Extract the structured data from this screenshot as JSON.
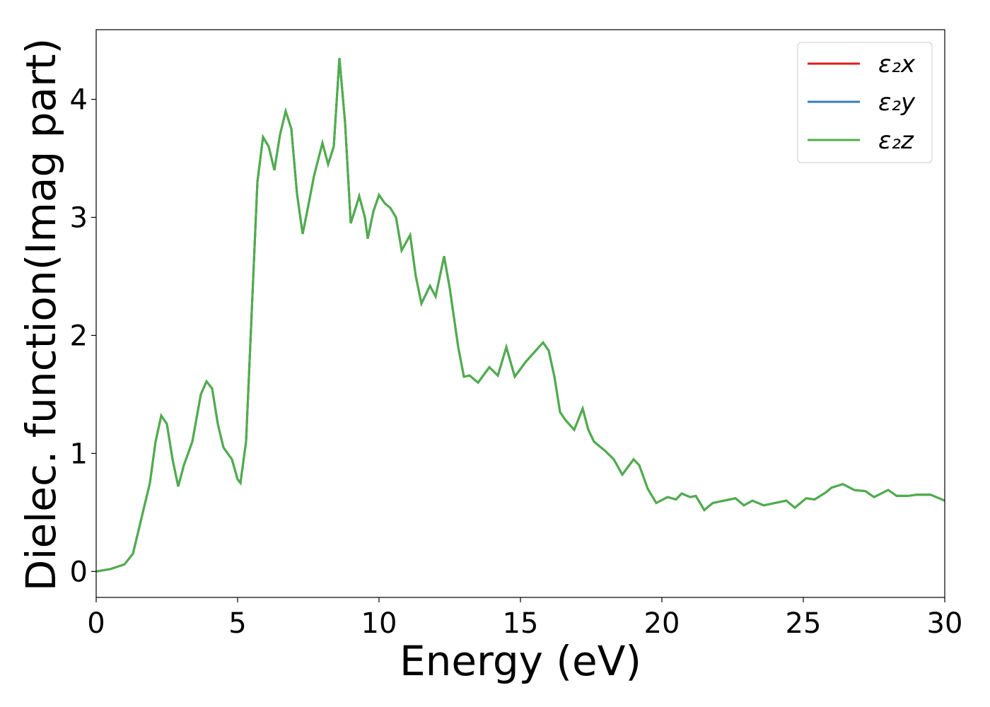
{
  "chart_data": {
    "type": "line",
    "xlabel": "Energy (eV)",
    "ylabel": "Dielec. function(Imag part)",
    "x": [
      0,
      0.5,
      1.0,
      1.3,
      1.6,
      1.9,
      2.1,
      2.3,
      2.5,
      2.7,
      2.9,
      3.1,
      3.4,
      3.7,
      3.9,
      4.1,
      4.3,
      4.5,
      4.8,
      5.0,
      5.1,
      5.3,
      5.5,
      5.7,
      5.9,
      6.1,
      6.3,
      6.5,
      6.7,
      6.9,
      7.1,
      7.3,
      7.5,
      7.7,
      8.0,
      8.2,
      8.4,
      8.6,
      8.8,
      9.0,
      9.2,
      9.3,
      9.5,
      9.6,
      9.8,
      10.0,
      10.2,
      10.4,
      10.6,
      10.8,
      11.1,
      11.3,
      11.5,
      11.8,
      12.0,
      12.3,
      12.5,
      12.8,
      13.0,
      13.2,
      13.5,
      13.9,
      14.2,
      14.5,
      14.8,
      15.2,
      15.5,
      15.8,
      16.0,
      16.2,
      16.4,
      16.6,
      16.9,
      17.2,
      17.4,
      17.6,
      18.0,
      18.3,
      18.6,
      19.0,
      19.2,
      19.5,
      19.8,
      20.2,
      20.5,
      20.7,
      21.0,
      21.2,
      21.5,
      21.8,
      22.2,
      22.6,
      22.9,
      23.2,
      23.6,
      24.0,
      24.4,
      24.7,
      25.1,
      25.4,
      25.8,
      26.0,
      26.4,
      26.8,
      27.2,
      27.5,
      28.0,
      28.3,
      28.7,
      29.0,
      29.5,
      30.0
    ],
    "series": [
      {
        "name": "ε₂x",
        "color": "#e41a1c",
        "values": [
          0,
          0.02,
          0.06,
          0.15,
          0.45,
          0.75,
          1.1,
          1.32,
          1.25,
          0.95,
          0.72,
          0.9,
          1.1,
          1.5,
          1.61,
          1.55,
          1.25,
          1.05,
          0.95,
          0.78,
          0.75,
          1.1,
          2.2,
          3.3,
          3.68,
          3.6,
          3.4,
          3.7,
          3.9,
          3.75,
          3.2,
          2.86,
          3.1,
          3.35,
          3.63,
          3.45,
          3.6,
          4.35,
          3.8,
          2.95,
          3.1,
          3.18,
          3.0,
          2.82,
          3.05,
          3.19,
          3.12,
          3.08,
          3.0,
          2.72,
          2.85,
          2.5,
          2.27,
          2.42,
          2.33,
          2.67,
          2.4,
          1.9,
          1.65,
          1.66,
          1.6,
          1.73,
          1.66,
          1.9,
          1.65,
          1.78,
          1.86,
          1.94,
          1.87,
          1.65,
          1.35,
          1.28,
          1.2,
          1.38,
          1.2,
          1.1,
          1.02,
          0.95,
          0.82,
          0.95,
          0.9,
          0.7,
          0.58,
          0.63,
          0.61,
          0.66,
          0.63,
          0.64,
          0.52,
          0.58,
          0.6,
          0.62,
          0.56,
          0.6,
          0.56,
          0.58,
          0.6,
          0.54,
          0.62,
          0.61,
          0.67,
          0.71,
          0.74,
          0.69,
          0.68,
          0.63,
          0.69,
          0.64,
          0.64,
          0.65,
          0.65,
          0.6
        ]
      },
      {
        "name": "ε₂y",
        "color": "#377eb8",
        "values": [
          0,
          0.02,
          0.06,
          0.15,
          0.45,
          0.75,
          1.1,
          1.32,
          1.25,
          0.95,
          0.72,
          0.9,
          1.1,
          1.5,
          1.61,
          1.55,
          1.25,
          1.05,
          0.95,
          0.78,
          0.75,
          1.1,
          2.2,
          3.3,
          3.68,
          3.6,
          3.4,
          3.7,
          3.9,
          3.75,
          3.2,
          2.86,
          3.1,
          3.35,
          3.63,
          3.45,
          3.6,
          4.35,
          3.8,
          2.95,
          3.1,
          3.18,
          3.0,
          2.82,
          3.05,
          3.19,
          3.12,
          3.08,
          3.0,
          2.72,
          2.85,
          2.5,
          2.27,
          2.42,
          2.33,
          2.67,
          2.4,
          1.9,
          1.65,
          1.66,
          1.6,
          1.73,
          1.66,
          1.9,
          1.65,
          1.78,
          1.86,
          1.94,
          1.87,
          1.65,
          1.35,
          1.28,
          1.2,
          1.38,
          1.2,
          1.1,
          1.02,
          0.95,
          0.82,
          0.95,
          0.9,
          0.7,
          0.58,
          0.63,
          0.61,
          0.66,
          0.63,
          0.64,
          0.52,
          0.58,
          0.6,
          0.62,
          0.56,
          0.6,
          0.56,
          0.58,
          0.6,
          0.54,
          0.62,
          0.61,
          0.67,
          0.71,
          0.74,
          0.69,
          0.68,
          0.63,
          0.69,
          0.64,
          0.64,
          0.65,
          0.65,
          0.6
        ]
      },
      {
        "name": "ε₂z",
        "color": "#4daf4a",
        "values": [
          0,
          0.02,
          0.06,
          0.15,
          0.45,
          0.75,
          1.1,
          1.32,
          1.25,
          0.95,
          0.72,
          0.9,
          1.1,
          1.5,
          1.61,
          1.55,
          1.25,
          1.05,
          0.95,
          0.78,
          0.75,
          1.1,
          2.2,
          3.3,
          3.68,
          3.6,
          3.4,
          3.7,
          3.9,
          3.75,
          3.2,
          2.86,
          3.1,
          3.35,
          3.63,
          3.45,
          3.6,
          4.35,
          3.8,
          2.95,
          3.1,
          3.18,
          3.0,
          2.82,
          3.05,
          3.19,
          3.12,
          3.08,
          3.0,
          2.72,
          2.85,
          2.5,
          2.27,
          2.42,
          2.33,
          2.67,
          2.4,
          1.9,
          1.65,
          1.66,
          1.6,
          1.73,
          1.66,
          1.9,
          1.65,
          1.78,
          1.86,
          1.94,
          1.87,
          1.65,
          1.35,
          1.28,
          1.2,
          1.38,
          1.2,
          1.1,
          1.02,
          0.95,
          0.82,
          0.95,
          0.9,
          0.7,
          0.58,
          0.63,
          0.61,
          0.66,
          0.63,
          0.64,
          0.52,
          0.58,
          0.6,
          0.62,
          0.56,
          0.6,
          0.56,
          0.58,
          0.6,
          0.54,
          0.62,
          0.61,
          0.67,
          0.71,
          0.74,
          0.69,
          0.68,
          0.63,
          0.69,
          0.64,
          0.64,
          0.65,
          0.65,
          0.6
        ]
      }
    ],
    "xlim": [
      0,
      30
    ],
    "xticks": [
      0,
      5,
      10,
      15,
      20,
      25,
      30
    ],
    "ylim": [
      -0.22,
      4.59
    ],
    "yticks": [
      0,
      1,
      2,
      3,
      4
    ],
    "grid": false,
    "legend": "upper right"
  }
}
